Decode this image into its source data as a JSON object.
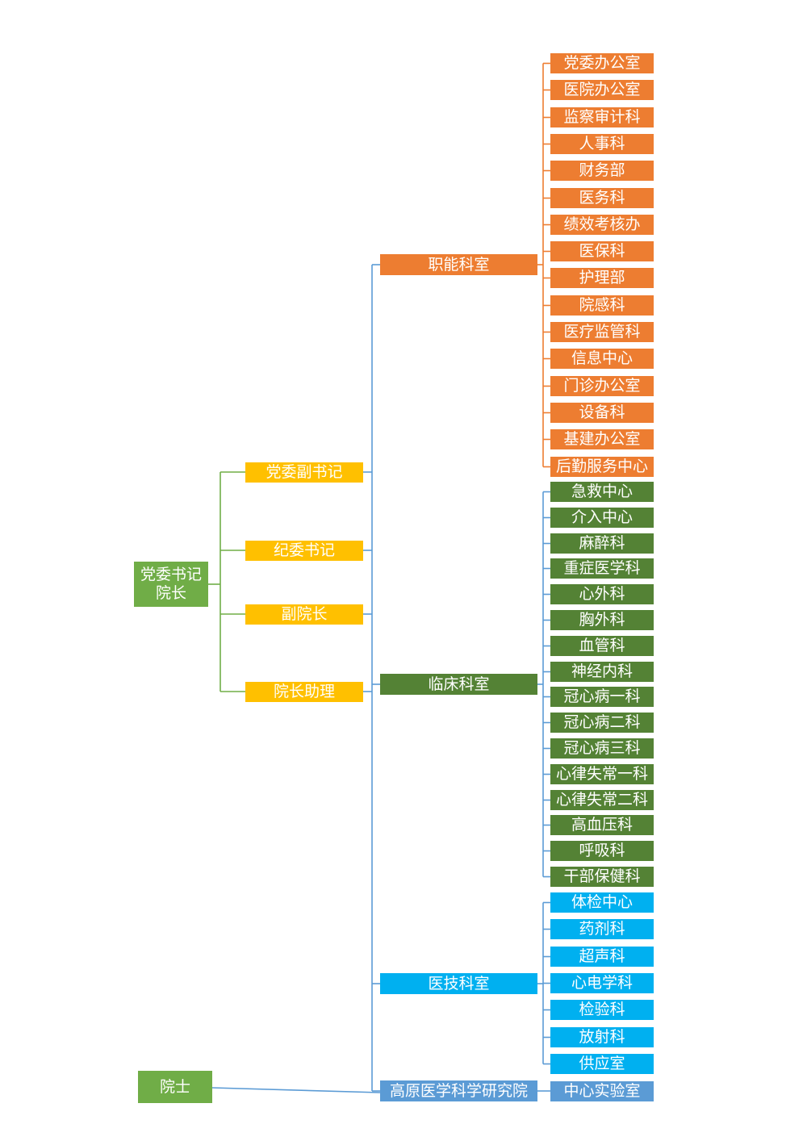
{
  "colors": {
    "orange": "#ED7D31",
    "green": "#548235",
    "yellow": "#FFC000",
    "cyan": "#00B0F0",
    "steel": "#5B9BD5",
    "root_green": "#70AD47",
    "line_green": "#70AD47",
    "line_blue": "#5B9BD5",
    "line_orange": "#ED7D31"
  },
  "root": {
    "line1": "党委书记",
    "line2": "院长"
  },
  "academician": "院士",
  "leaders": [
    "党委副书记",
    "纪委书记",
    "副院长",
    "院长助理"
  ],
  "categories": [
    "职能科室",
    "临床科室",
    "医技科室",
    "高原医学科学研究院"
  ],
  "functional_depts": [
    "党委办公室",
    "医院办公室",
    "监察审计科",
    "人事科",
    "财务部",
    "医务科",
    "绩效考核办",
    "医保科",
    "护理部",
    "院感科",
    "医疗监管科",
    "信息中心",
    "门诊办公室",
    "设备科",
    "基建办公室",
    "后勤服务中心"
  ],
  "clinical_depts": [
    "急救中心",
    "介入中心",
    "麻醉科",
    "重症医学科",
    "心外科",
    "胸外科",
    "血管科",
    "神经内科",
    "冠心病一科",
    "冠心病二科",
    "冠心病三科",
    "心律失常一科",
    "心律失常二科",
    "高血压科",
    "呼吸科",
    "干部保健科"
  ],
  "medtech_depts": [
    "体检中心",
    "药剂科",
    "超声科",
    "心电学科",
    "检验科",
    "放射科",
    "供应室"
  ],
  "research_depts": [
    "中心实验室"
  ]
}
